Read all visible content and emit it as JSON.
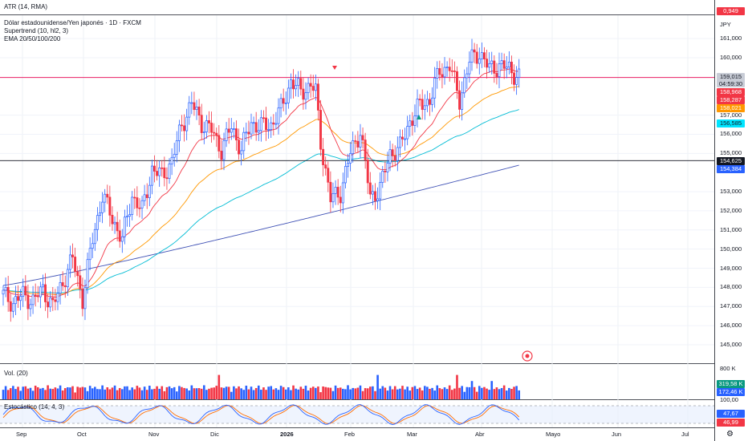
{
  "header": {
    "atr_label": "ATR (14, RMA)",
    "atr_value": "0,949",
    "symbol_title": "Dólar estadounidense/Yen japonés · 1D · FXCM",
    "currency": "JPY",
    "supertrend_label": "Supertrend (10, hl2, 3)",
    "ema_label": "EMA 20/50/100/200"
  },
  "price_axis": {
    "ticks": [
      "161,000",
      "160,000",
      "157,000",
      "156,000",
      "155,000",
      "153,000",
      "152,000",
      "151,000",
      "150,000",
      "149,000",
      "148,000",
      "147,000",
      "146,000",
      "145,000"
    ]
  },
  "price_tags": {
    "last": "159,015",
    "countdown": "04:59:30",
    "supertrend_line": "158,968",
    "ema20": "158,287",
    "ema50": "158,021",
    "ema100": "156,585",
    "support": "154,625",
    "ema200": "154,384"
  },
  "volume": {
    "label": "Vol. (20)",
    "axis_top": "800 K",
    "axis_bottom": "100,00",
    "tag1": "319,58 K",
    "tag2": "172,46 K"
  },
  "stochastic": {
    "label": "Estocástico (14, 4, 3)",
    "tag_k": "47,67",
    "tag_d": "46,99"
  },
  "time_axis": {
    "labels": [
      "Sep",
      "Oct",
      "Nov",
      "Dic",
      "2026",
      "Feb",
      "Mar",
      "Abr",
      "Mayo",
      "Jun",
      "Jul"
    ]
  },
  "colors": {
    "up": "#2962ff",
    "down": "#f23645",
    "ema20": "#f23645",
    "ema50": "#ff9800",
    "ema100": "#00bcd4",
    "ema200": "#3f51b5",
    "stoch_k": "#2962ff",
    "stoch_d": "#ff6d00",
    "resistance": "#e91e63",
    "support": "#131722"
  },
  "chart_data": {
    "type": "candlestick",
    "title": "Dólar estadounidense/Yen japonés · 1D · FXCM",
    "ylim": [
      144.5,
      162.0
    ],
    "horizontal_lines": [
      158.968,
      154.625
    ],
    "anchors_close": [
      [
        0,
        147.6
      ],
      [
        4,
        147.2
      ],
      [
        8,
        147.6
      ],
      [
        12,
        147.3
      ],
      [
        16,
        147.9
      ],
      [
        20,
        147.0
      ],
      [
        24,
        148.3
      ],
      [
        28,
        149.5
      ],
      [
        32,
        147.4
      ],
      [
        36,
        150.5
      ],
      [
        40,
        152.8
      ],
      [
        44,
        151.6
      ],
      [
        48,
        150.5
      ],
      [
        52,
        152.8
      ],
      [
        56,
        152.0
      ],
      [
        60,
        154.2
      ],
      [
        64,
        153.8
      ],
      [
        68,
        154.6
      ],
      [
        72,
        156.5
      ],
      [
        76,
        157.6
      ],
      [
        80,
        156.6
      ],
      [
        84,
        156.2
      ],
      [
        88,
        155.2
      ],
      [
        92,
        156.4
      ],
      [
        96,
        155.2
      ],
      [
        100,
        156.6
      ],
      [
        104,
        156.4
      ],
      [
        108,
        156.5
      ],
      [
        112,
        157.3
      ],
      [
        116,
        158.8
      ],
      [
        120,
        158.2
      ],
      [
        124,
        158.6
      ],
      [
        126,
        158.2
      ],
      [
        128,
        155.6
      ],
      [
        132,
        152.6
      ],
      [
        136,
        153.0
      ],
      [
        140,
        155.0
      ],
      [
        144,
        156.2
      ],
      [
        148,
        152.7
      ],
      [
        152,
        153.2
      ],
      [
        156,
        155.0
      ],
      [
        160,
        155.3
      ],
      [
        164,
        156.7
      ],
      [
        168,
        157.5
      ],
      [
        172,
        157.8
      ],
      [
        176,
        159.3
      ],
      [
        180,
        159.6
      ],
      [
        184,
        157.8
      ],
      [
        188,
        159.8
      ],
      [
        192,
        160.3
      ],
      [
        196,
        159.4
      ],
      [
        200,
        159.6
      ],
      [
        204,
        159.4
      ],
      [
        208,
        159.0
      ]
    ],
    "ema200_endpoints": [
      [
        0,
        148.1
      ],
      [
        208,
        154.384
      ]
    ],
    "ema100_end": 156.585,
    "ema50_end": 158.021,
    "ema20_end": 158.287
  }
}
